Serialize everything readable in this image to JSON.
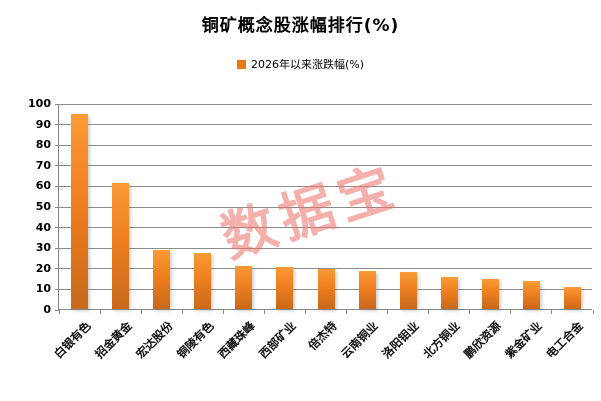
{
  "page": {
    "background": "#FFFFFF"
  },
  "header": {
    "title": "铜矿概念股涨幅排行(%)"
  },
  "legend": {
    "label": "2026年以来涨跌幅(%)",
    "swatch_color": "#E8790F"
  },
  "watermark": {
    "text": "数据宝",
    "color": "#ED7168"
  },
  "chart_data": {
    "type": "bar",
    "title": "铜矿概念股涨幅排行(%)",
    "legend_entries": [
      "2026年以来涨跌幅(%)"
    ],
    "legend_position": "top",
    "grid": true,
    "xlabel": "",
    "ylabel": "",
    "ylim": [
      0,
      100
    ],
    "ytick_step": 10,
    "categories": [
      "白银有色",
      "招金黄金",
      "宏达股份",
      "铜陵有色",
      "西藏珠峰",
      "西部矿业",
      "倍杰特",
      "云南铜业",
      "洛阳钼业",
      "北方铜业",
      "鹏欣资源",
      "紫金矿业",
      "电工合金"
    ],
    "values": [
      94.5,
      61,
      28.5,
      27.3,
      21,
      20.6,
      19.5,
      18.5,
      18,
      15.3,
      14.7,
      13.5,
      10.5
    ],
    "bar_color_top": "#FA9B34",
    "bar_color_bottom": "#C8691B",
    "gridline_color": "#8C8C8C"
  }
}
